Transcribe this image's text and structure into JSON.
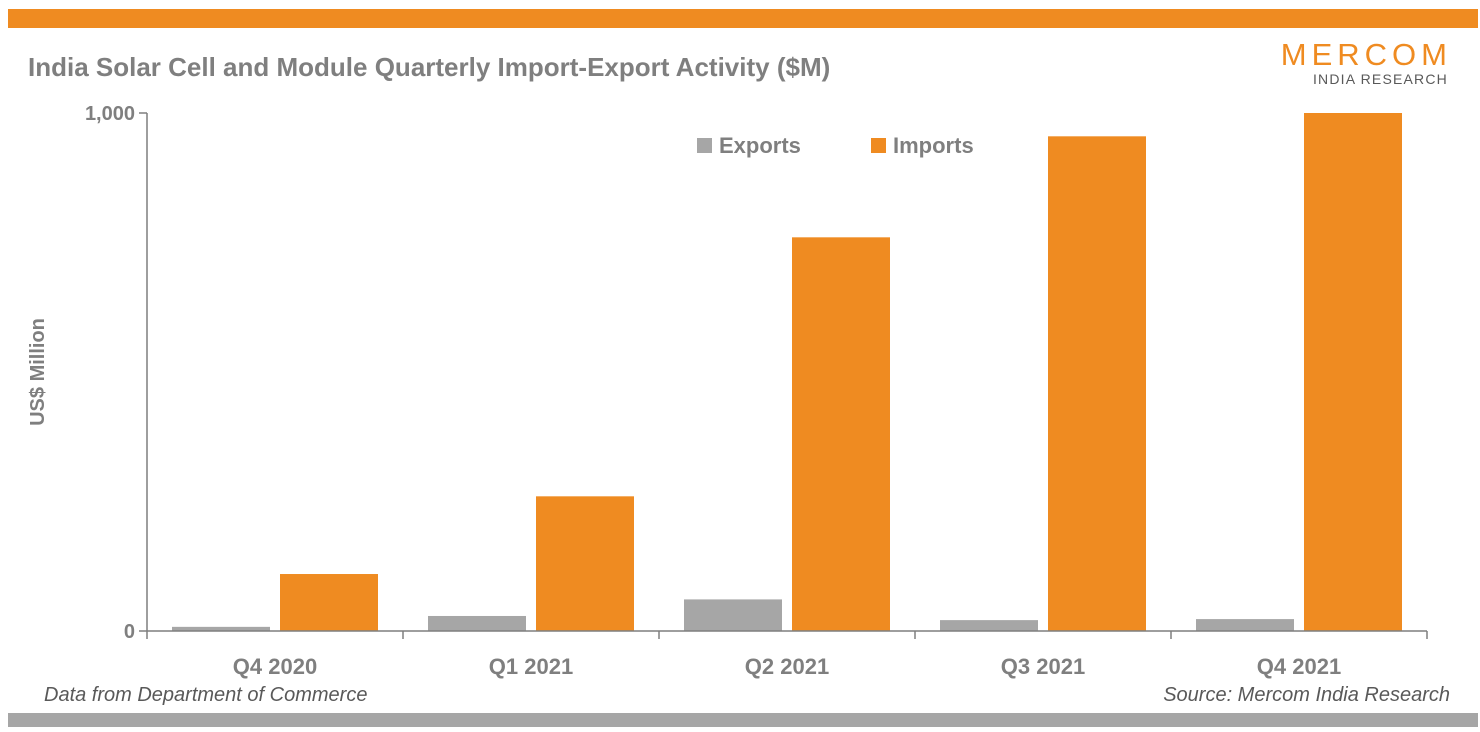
{
  "header": {
    "title": "India Solar Cell and Module Quarterly Import-Export Activity ($M)"
  },
  "logo": {
    "name": "MERCOM",
    "subtitle": "INDIA RESEARCH"
  },
  "footer": {
    "left_note": "Data from Department of Commerce",
    "right_note": "Source: Mercom India Research"
  },
  "colors": {
    "accent": "#ef8b21",
    "exports": "#a6a6a6",
    "imports": "#ef8b21",
    "text": "#7f7f7f",
    "bottom_bar": "#a6a6a6"
  },
  "chart_data": {
    "type": "bar",
    "title": "India Solar Cell and Module Quarterly Import-Export Activity ($M)",
    "xlabel": "",
    "ylabel": "US$ Million",
    "ylim": [
      0,
      1000
    ],
    "yticks": [
      0,
      1000
    ],
    "ytick_labels": [
      "0",
      "1,000"
    ],
    "grid": false,
    "legend_position": "top-right",
    "categories": [
      "Q4 2020",
      "Q1 2021",
      "Q2 2021",
      "Q3 2021",
      "Q4 2021"
    ],
    "series": [
      {
        "name": "Exports",
        "color": "#a6a6a6",
        "values": [
          8,
          29,
          61,
          21,
          23
        ]
      },
      {
        "name": "Imports",
        "color": "#ef8b21",
        "values": [
          110,
          260,
          760,
          955,
          1000
        ]
      }
    ]
  }
}
